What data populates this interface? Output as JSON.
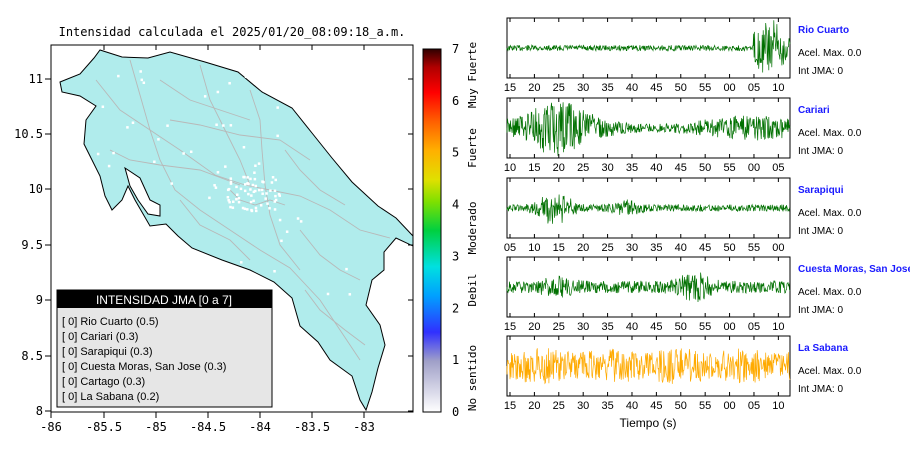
{
  "map": {
    "title": "Intensidad calculada el 2025/01/20_08:09:18_a.m.",
    "lon_ticks": [
      "-86",
      "-85.5",
      "-85",
      "-84.5",
      "-84",
      "-83.5",
      "-83"
    ],
    "lat_ticks": [
      "11",
      "10.5",
      "10",
      "9.5",
      "9",
      "8.5",
      "8"
    ],
    "land_color": "#b0ecec",
    "legend": {
      "header": "INTENSIDAD JMA [0 a 7]",
      "items": [
        "[ 0]  Rio Cuarto (0.5)",
        "[ 0]  Cariari (0.3)",
        "[ 0]  Sarapiqui (0.3)",
        "[ 0]  Cuesta Moras, San Jose (0.3)",
        "[ 0]  Cartago (0.3)",
        "[ 0]  La Sabana (0.2)"
      ]
    }
  },
  "colorbar": {
    "ticks": [
      "7",
      "6",
      "5",
      "4",
      "3",
      "2",
      "1",
      "0"
    ],
    "labels": [
      "Muy Fuerte",
      "Fuerte",
      "Moderado",
      "Debil",
      "No sentido"
    ]
  },
  "waveforms": {
    "xlabel": "Tiempo (s)",
    "panels": [
      {
        "station": "Rio Cuarto",
        "accel": "Acel. Max. 0.0",
        "int": "Int JMA: 0",
        "color": "#007000",
        "ticks": [
          "15",
          "20",
          "25",
          "30",
          "35",
          "40",
          "45",
          "50",
          "55",
          "00",
          "05",
          "10"
        ]
      },
      {
        "station": "Cariari",
        "accel": "Acel. Max. 0.0",
        "int": "Int JMA: 0",
        "color": "#007000",
        "ticks": [
          "10",
          "15",
          "20",
          "25",
          "30",
          "35",
          "40",
          "45",
          "50",
          "55",
          "00",
          "05"
        ]
      },
      {
        "station": "Sarapiqui",
        "accel": "Acel. Max. 0.0",
        "int": "Int JMA: 0",
        "color": "#007000",
        "ticks": [
          "05",
          "10",
          "15",
          "20",
          "25",
          "30",
          "35",
          "40",
          "45",
          "50",
          "55",
          "00"
        ]
      },
      {
        "station": "Cuesta Moras, San Jose",
        "accel": "Acel. Max. 0.0",
        "int": "Int JMA: 0",
        "color": "#007000",
        "ticks": [
          "15",
          "20",
          "25",
          "30",
          "35",
          "40",
          "45",
          "50",
          "55",
          "00",
          "05",
          "10"
        ]
      },
      {
        "station": "La Sabana",
        "accel": "Acel. Max. 0.0",
        "int": "Int JMA: 0",
        "color": "#ffaa00",
        "ticks": [
          "15",
          "20",
          "25",
          "30",
          "35",
          "40",
          "45",
          "50",
          "55",
          "00",
          "05",
          "10"
        ]
      }
    ]
  }
}
